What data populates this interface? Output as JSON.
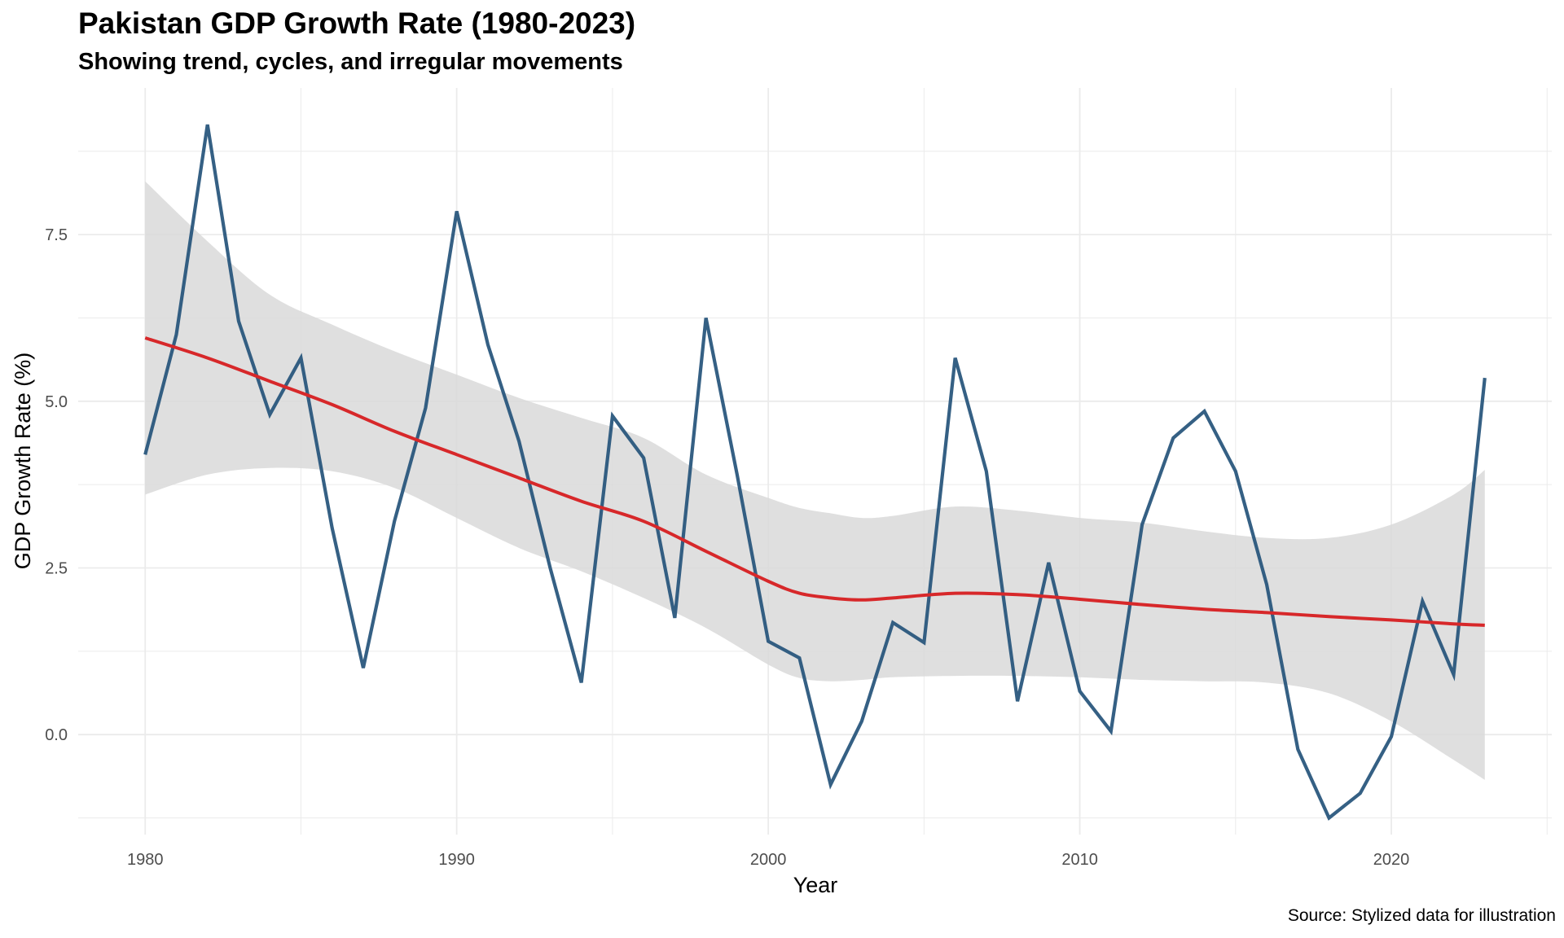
{
  "chart_data": {
    "type": "line",
    "title": "Pakistan GDP Growth Rate (1980-2023)",
    "subtitle": "Showing trend, cycles, and irregular movements",
    "caption": "Source: Stylized data for illustration",
    "xlabel": "Year",
    "ylabel": "GDP Growth Rate (%)",
    "xlim": [
      1977.85,
      2025.15
    ],
    "ylim": [
      -1.5,
      9.7
    ],
    "x_ticks": [
      1980,
      1990,
      2000,
      2010,
      2020
    ],
    "y_ticks": [
      0.0,
      2.5,
      5.0,
      7.5
    ],
    "y_tick_labels": [
      "0.0",
      "2.5",
      "5.0",
      "7.5"
    ],
    "grid": true,
    "legend": "none",
    "colors": {
      "line": "#24527a",
      "trend": "#d7282a",
      "band": "#d9d9d9",
      "grid": "#ebebeb"
    },
    "series": [
      {
        "x": [
          1980,
          1981,
          1982,
          1983,
          1984,
          1985,
          1986,
          1987,
          1988,
          1989,
          1990,
          1991,
          1992,
          1993,
          1994,
          1995,
          1996,
          1997,
          1998,
          1999,
          2000,
          2001,
          2002,
          2003,
          2004,
          2005,
          2006,
          2007,
          2008,
          2009,
          2010,
          2011,
          2012,
          2013,
          2014,
          2015,
          2016,
          2017,
          2018,
          2019,
          2020,
          2021,
          2022,
          2023
        ],
        "values": [
          4.2,
          6.0,
          9.15,
          6.2,
          4.8,
          5.65,
          3.1,
          1.0,
          3.2,
          4.9,
          7.85,
          5.85,
          4.4,
          2.5,
          0.78,
          4.78,
          4.15,
          1.75,
          6.25,
          3.9,
          1.4,
          1.15,
          -0.75,
          0.2,
          1.68,
          1.38,
          5.65,
          3.95,
          0.5,
          2.58,
          0.65,
          0.05,
          3.15,
          4.45,
          4.85,
          3.95,
          2.25,
          -0.22,
          -1.25,
          -0.88,
          -0.03,
          2.0,
          0.9,
          5.35
        ]
      },
      {
        "x": [
          1980,
          1982,
          1984,
          1986,
          1988,
          1990,
          1992,
          1994,
          1996,
          1998,
          2000,
          2001,
          2002,
          2003,
          2004,
          2006,
          2008,
          2010,
          2012,
          2014,
          2016,
          2018,
          2020,
          2022,
          2023
        ],
        "values": [
          5.95,
          5.65,
          5.3,
          4.95,
          4.55,
          4.2,
          3.85,
          3.5,
          3.2,
          2.75,
          2.3,
          2.12,
          2.05,
          2.02,
          2.05,
          2.12,
          2.1,
          2.03,
          1.95,
          1.88,
          1.83,
          1.77,
          1.72,
          1.66,
          1.64
        ],
        "lower": [
          3.6,
          3.9,
          4.0,
          3.95,
          3.7,
          3.25,
          2.8,
          2.45,
          2.05,
          1.6,
          1.05,
          0.85,
          0.8,
          0.82,
          0.86,
          0.88,
          0.88,
          0.86,
          0.82,
          0.8,
          0.78,
          0.62,
          0.2,
          -0.38,
          -0.68
        ],
        "upper": [
          8.3,
          7.4,
          6.6,
          6.15,
          5.75,
          5.4,
          5.05,
          4.75,
          4.45,
          3.9,
          3.55,
          3.4,
          3.32,
          3.25,
          3.28,
          3.42,
          3.36,
          3.25,
          3.18,
          3.05,
          2.95,
          2.95,
          3.15,
          3.6,
          3.97
        ]
      }
    ]
  }
}
